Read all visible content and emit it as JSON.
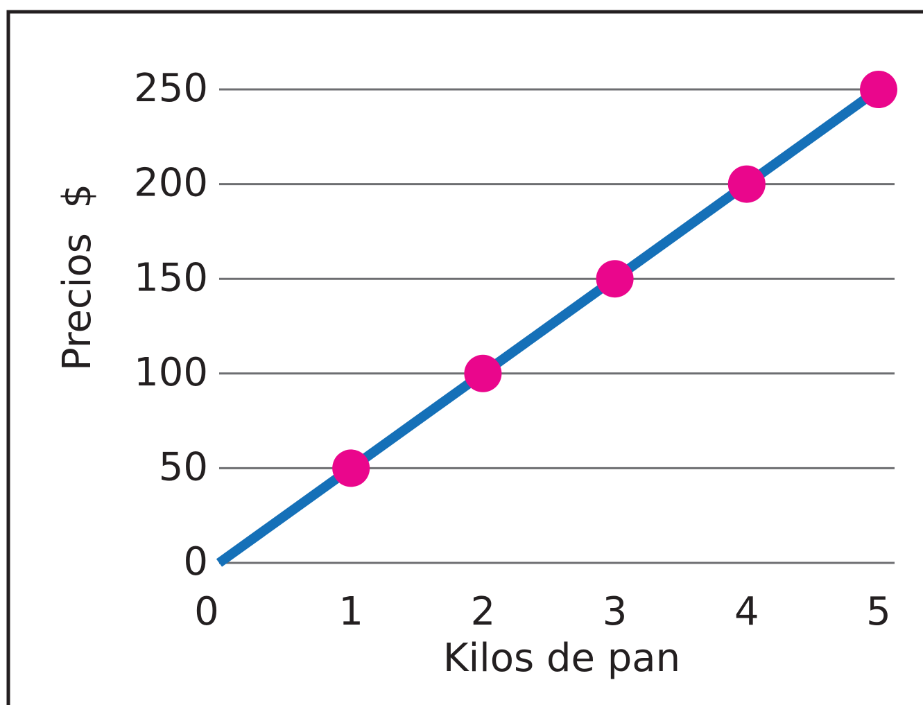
{
  "chart_data": {
    "type": "line",
    "x_label": "Kilos de pan",
    "y_label": "Precios  $",
    "x": [
      0,
      1,
      2,
      3,
      4,
      5
    ],
    "series": [
      {
        "name": "Precios",
        "color": "#1570b8",
        "marker_color": "#ea068c",
        "values": [
          0,
          50,
          100,
          150,
          200,
          250
        ],
        "markers": [
          false,
          true,
          true,
          true,
          true,
          true
        ]
      }
    ],
    "xlim": [
      0,
      5
    ],
    "xticks": [
      0,
      1,
      2,
      3,
      4,
      5
    ],
    "ylim": [
      0,
      250
    ],
    "yticks": [
      0,
      50,
      100,
      150,
      200,
      250
    ],
    "grid": true
  }
}
